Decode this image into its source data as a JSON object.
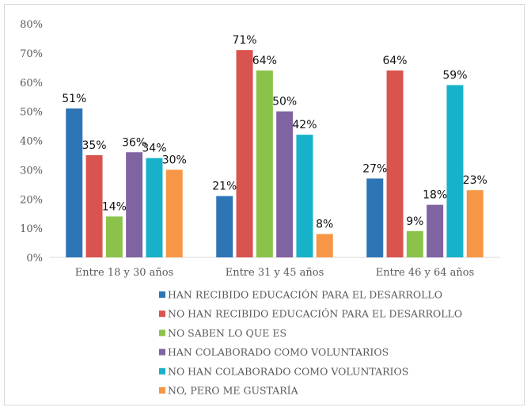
{
  "chart_data": {
    "type": "bar",
    "title": "",
    "xlabel": "",
    "ylabel": "",
    "ylim": [
      0,
      80
    ],
    "yticks": [
      "0%",
      "10%",
      "20%",
      "30%",
      "40%",
      "50%",
      "60%",
      "70%",
      "80%"
    ],
    "grid": false,
    "legend_position": "bottom",
    "categories": [
      "Entre 18 y 30  años",
      "Entre 31 y 45 años",
      "Entre 46 y 64 años"
    ],
    "series": [
      {
        "name": "HAN RECIBIDO EDUCACIÓN PARA EL DESARROLLO",
        "color": "#2e75b6",
        "values": [
          51,
          21,
          27
        ]
      },
      {
        "name": "NO HAN RECIBIDO EDUCACIÓN PARA EL DESARROLLO",
        "color": "#d9534f",
        "values": [
          35,
          71,
          64
        ]
      },
      {
        "name": "NO SABEN LO QUE ES",
        "color": "#8bc34a",
        "values": [
          14,
          64,
          9
        ]
      },
      {
        "name": "HAN COLABORADO COMO VOLUNTARIOS",
        "color": "#8064a2",
        "values": [
          36,
          50,
          18
        ]
      },
      {
        "name": "NO HAN COLABORADO COMO VOLUNTARIOS",
        "color": "#17b2c9",
        "values": [
          34,
          42,
          59
        ]
      },
      {
        "name": "NO, PERO ME GUSTARÍA",
        "color": "#f79646",
        "values": [
          30,
          8,
          23
        ]
      }
    ]
  }
}
